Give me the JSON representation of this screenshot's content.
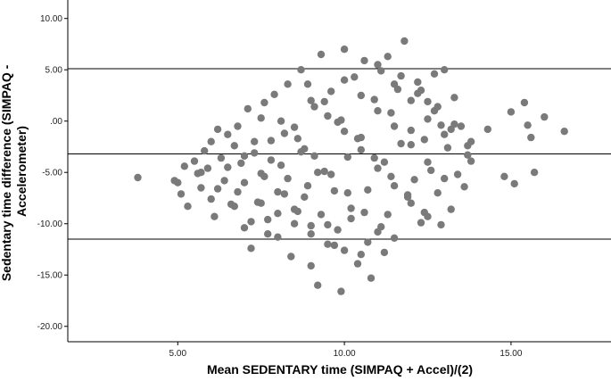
{
  "chart_data": {
    "type": "scatter",
    "title": "",
    "xlabel": "Mean SEDENTARY time (SIMPAQ + Accel)/(2)",
    "ylabel_lines": [
      "Sedentary time difference (SIMPAQ -",
      "Accelerometer)"
    ],
    "xlim": [
      1.7,
      18.0
    ],
    "ylim": [
      -21.5,
      11.8
    ],
    "xticks": [
      {
        "value": 5.0,
        "label": "5.00"
      },
      {
        "value": 10.0,
        "label": "10.00"
      },
      {
        "value": 15.0,
        "label": "15.00"
      }
    ],
    "yticks": [
      {
        "value": 10.0,
        "label": "10.00"
      },
      {
        "value": 5.0,
        "label": "5.00"
      },
      {
        "value": 0.0,
        "label": ".00"
      },
      {
        "value": -5.0,
        "label": "-5.00"
      },
      {
        "value": -10.0,
        "label": "-10.00"
      },
      {
        "value": -15.0,
        "label": "-15.00"
      },
      {
        "value": -20.0,
        "label": "-20.00"
      }
    ],
    "reference_lines": [
      {
        "name": "upper-limit",
        "y": 5.1
      },
      {
        "name": "mean-difference",
        "y": -3.2
      },
      {
        "name": "lower-limit",
        "y": -11.5
      }
    ],
    "grid": false,
    "point_color": "#7a7a7a",
    "line_color": "#000000",
    "points": [
      [
        3.8,
        -5.5
      ],
      [
        4.9,
        -5.8
      ],
      [
        5.0,
        -6.0
      ],
      [
        5.1,
        -7.1
      ],
      [
        5.2,
        -4.4
      ],
      [
        5.3,
        -8.3
      ],
      [
        5.5,
        -3.9
      ],
      [
        5.6,
        -5.1
      ],
      [
        5.7,
        -6.5
      ],
      [
        5.8,
        -2.9
      ],
      [
        5.9,
        -4.6
      ],
      [
        6.0,
        -7.6
      ],
      [
        6.1,
        -9.3
      ],
      [
        6.2,
        -0.8
      ],
      [
        6.3,
        -3.6
      ],
      [
        6.4,
        -5.8
      ],
      [
        6.5,
        -1.3
      ],
      [
        6.6,
        -8.1
      ],
      [
        6.7,
        -2.4
      ],
      [
        6.8,
        -6.9
      ],
      [
        6.9,
        -4.1
      ],
      [
        7.0,
        -10.4
      ],
      [
        7.1,
        1.2
      ],
      [
        7.2,
        -12.4
      ],
      [
        7.3,
        -3.1
      ],
      [
        7.4,
        -7.9
      ],
      [
        7.5,
        0.3
      ],
      [
        7.6,
        -5.4
      ],
      [
        7.7,
        -9.6
      ],
      [
        7.8,
        -1.9
      ],
      [
        7.9,
        2.6
      ],
      [
        8.0,
        -11.3
      ],
      [
        8.1,
        -4.3
      ],
      [
        8.2,
        -7.1
      ],
      [
        8.3,
        3.6
      ],
      [
        8.4,
        -13.2
      ],
      [
        8.5,
        -0.6
      ],
      [
        8.6,
        -8.8
      ],
      [
        8.7,
        5.0
      ],
      [
        8.8,
        -2.7
      ],
      [
        8.9,
        -6.3
      ],
      [
        9.0,
        -14.1
      ],
      [
        9.1,
        1.4
      ],
      [
        9.2,
        -16.0
      ],
      [
        9.3,
        6.5
      ],
      [
        9.4,
        -4.9
      ],
      [
        9.5,
        -10.1
      ],
      [
        9.6,
        2.9
      ],
      [
        9.7,
        -12.1
      ],
      [
        9.8,
        -0.1
      ],
      [
        9.9,
        -16.6
      ],
      [
        10.0,
        7.0
      ],
      [
        10.1,
        -3.5
      ],
      [
        10.2,
        -8.5
      ],
      [
        10.3,
        4.3
      ],
      [
        10.4,
        -13.9
      ],
      [
        10.5,
        -1.6
      ],
      [
        10.6,
        5.9
      ],
      [
        10.7,
        -6.7
      ],
      [
        10.8,
        -15.3
      ],
      [
        10.9,
        2.1
      ],
      [
        11.0,
        -10.8
      ],
      [
        11.1,
        4.9
      ],
      [
        11.2,
        -4.0
      ],
      [
        11.3,
        -9.1
      ],
      [
        11.4,
        0.8
      ],
      [
        11.5,
        -11.4
      ],
      [
        11.6,
        3.1
      ],
      [
        11.7,
        -2.2
      ],
      [
        11.8,
        7.8
      ],
      [
        11.9,
        -7.4
      ],
      [
        12.0,
        -0.9
      ],
      [
        12.1,
        -5.7
      ],
      [
        12.2,
        3.8
      ],
      [
        12.3,
        -9.9
      ],
      [
        12.4,
        -1.8
      ],
      [
        12.5,
        1.9
      ],
      [
        12.6,
        -4.8
      ],
      [
        12.7,
        4.6
      ],
      [
        12.8,
        -7.0
      ],
      [
        12.9,
        -0.4
      ],
      [
        13.0,
        5.0
      ],
      [
        13.1,
        -2.6
      ],
      [
        13.2,
        -8.6
      ],
      [
        13.3,
        2.3
      ],
      [
        13.4,
        -5.2
      ],
      [
        13.5,
        -0.5
      ],
      [
        13.6,
        -6.4
      ],
      [
        13.7,
        -3.3
      ],
      [
        13.8,
        -3.9
      ],
      [
        14.3,
        -0.8
      ],
      [
        14.8,
        -5.4
      ],
      [
        15.0,
        0.9
      ],
      [
        15.1,
        -6.1
      ],
      [
        15.4,
        1.8
      ],
      [
        15.5,
        -0.4
      ],
      [
        15.6,
        -1.6
      ],
      [
        15.7,
        -5.0
      ],
      [
        16.0,
        0.4
      ],
      [
        16.6,
        -1.0
      ],
      [
        6.0,
        -2.0
      ],
      [
        6.5,
        -4.5
      ],
      [
        7.0,
        -6.0
      ],
      [
        7.5,
        -8.0
      ],
      [
        8.0,
        -9.0
      ],
      [
        8.5,
        -10.0
      ],
      [
        9.0,
        -11.0
      ],
      [
        9.5,
        -12.0
      ],
      [
        10.0,
        -12.6
      ],
      [
        10.5,
        -13.0
      ],
      [
        8.2,
        -1.2
      ],
      [
        8.7,
        -3.0
      ],
      [
        9.2,
        -5.0
      ],
      [
        9.7,
        -6.8
      ],
      [
        10.2,
        -9.5
      ],
      [
        10.7,
        -11.8
      ],
      [
        11.2,
        -12.8
      ],
      [
        9.0,
        2.0
      ],
      [
        9.5,
        0.5
      ],
      [
        10.0,
        -1.0
      ],
      [
        10.5,
        -2.8
      ],
      [
        11.0,
        -4.6
      ],
      [
        11.5,
        -6.3
      ],
      [
        12.0,
        -8.0
      ],
      [
        12.5,
        -9.3
      ],
      [
        10.0,
        4.0
      ],
      [
        10.5,
        2.5
      ],
      [
        11.0,
        1.0
      ],
      [
        11.5,
        -0.5
      ],
      [
        12.0,
        -2.3
      ],
      [
        12.5,
        -4.0
      ],
      [
        13.0,
        -5.6
      ],
      [
        11.0,
        5.5
      ],
      [
        11.5,
        3.6
      ],
      [
        12.0,
        2.0
      ],
      [
        12.5,
        0.2
      ],
      [
        13.0,
        -1.3
      ],
      [
        6.8,
        -0.5
      ],
      [
        7.3,
        -2.0
      ],
      [
        7.8,
        -3.8
      ],
      [
        8.3,
        -5.6
      ],
      [
        8.8,
        -7.4
      ],
      [
        9.3,
        -9.1
      ],
      [
        9.8,
        -10.6
      ],
      [
        7.6,
        1.8
      ],
      [
        8.1,
        0.0
      ],
      [
        8.6,
        -1.7
      ],
      [
        9.1,
        -3.4
      ],
      [
        9.6,
        -5.2
      ],
      [
        10.1,
        -7.0
      ],
      [
        10.6,
        -8.9
      ],
      [
        11.1,
        -10.3
      ],
      [
        5.7,
        -5.0
      ],
      [
        6.2,
        -6.6
      ],
      [
        6.7,
        -8.3
      ],
      [
        7.2,
        -9.8
      ],
      [
        7.7,
        -11.0
      ],
      [
        8.9,
        3.6
      ],
      [
        9.4,
        1.9
      ],
      [
        9.9,
        0.1
      ],
      [
        10.4,
        -1.7
      ],
      [
        10.9,
        -3.6
      ],
      [
        11.4,
        -5.4
      ],
      [
        11.9,
        -7.2
      ],
      [
        12.4,
        -8.9
      ],
      [
        12.9,
        -10.1
      ],
      [
        12.3,
        3.0
      ],
      [
        12.8,
        1.4
      ],
      [
        13.3,
        -0.3
      ],
      [
        13.8,
        -2.0
      ],
      [
        7.0,
        -3.4
      ],
      [
        7.5,
        -5.1
      ],
      [
        8.0,
        -6.9
      ],
      [
        8.5,
        -8.6
      ],
      [
        9.0,
        -10.2
      ],
      [
        11.3,
        6.3
      ],
      [
        11.7,
        4.4
      ],
      [
        12.2,
        2.7
      ],
      [
        12.7,
        1.0
      ],
      [
        13.2,
        -0.8
      ],
      [
        13.7,
        -2.4
      ]
    ]
  }
}
